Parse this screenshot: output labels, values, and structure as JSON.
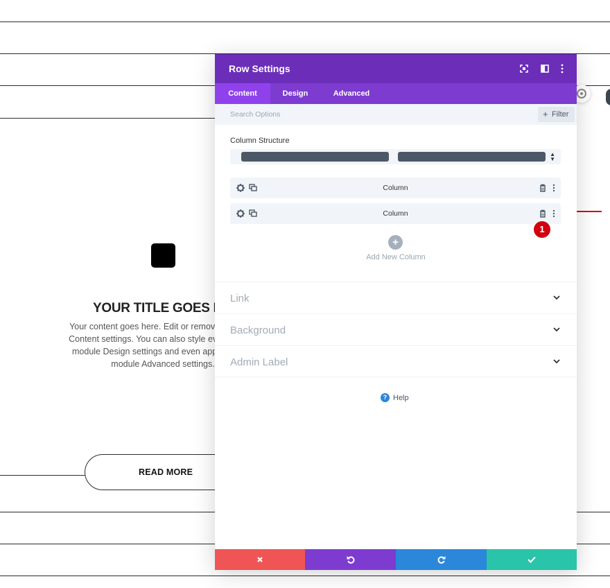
{
  "background_card": {
    "title": "YOUR TITLE GOES HE",
    "body_lines": [
      "Your content goes here. Edit or remove this text i",
      "Content settings. You can also style every aspect",
      "module Design settings and even apply custom",
      "module Advanced settings."
    ],
    "button_label": "READ MORE"
  },
  "modal": {
    "title": "Row Settings",
    "header_icons": [
      "fullscreen-icon",
      "split-view-icon",
      "more-vertical-icon"
    ],
    "tabs": [
      {
        "label": "Content",
        "active": true
      },
      {
        "label": "Design",
        "active": false
      },
      {
        "label": "Advanced",
        "active": false
      }
    ],
    "search": {
      "placeholder": "Search Options",
      "filter_label": "Filter"
    },
    "column_structure": {
      "label": "Column Structure"
    },
    "columns": [
      {
        "label": "Column"
      },
      {
        "label": "Column"
      }
    ],
    "badge": "1",
    "add_column_label": "Add New Column",
    "sections": [
      {
        "label": "Link"
      },
      {
        "label": "Background"
      },
      {
        "label": "Admin Label"
      }
    ],
    "help_label": "Help",
    "footer_buttons": [
      {
        "name": "cancel",
        "color": "#ef5555"
      },
      {
        "name": "undo",
        "color": "#7e3bd0"
      },
      {
        "name": "redo",
        "color": "#2b87da"
      },
      {
        "name": "save",
        "color": "#29c4a9"
      }
    ]
  },
  "colors": {
    "header": "#6c2eb9",
    "tabs": "#7e3bd0",
    "active_tab": "#8f42ec",
    "badge": "#d10010",
    "arrow": "#d10010"
  }
}
